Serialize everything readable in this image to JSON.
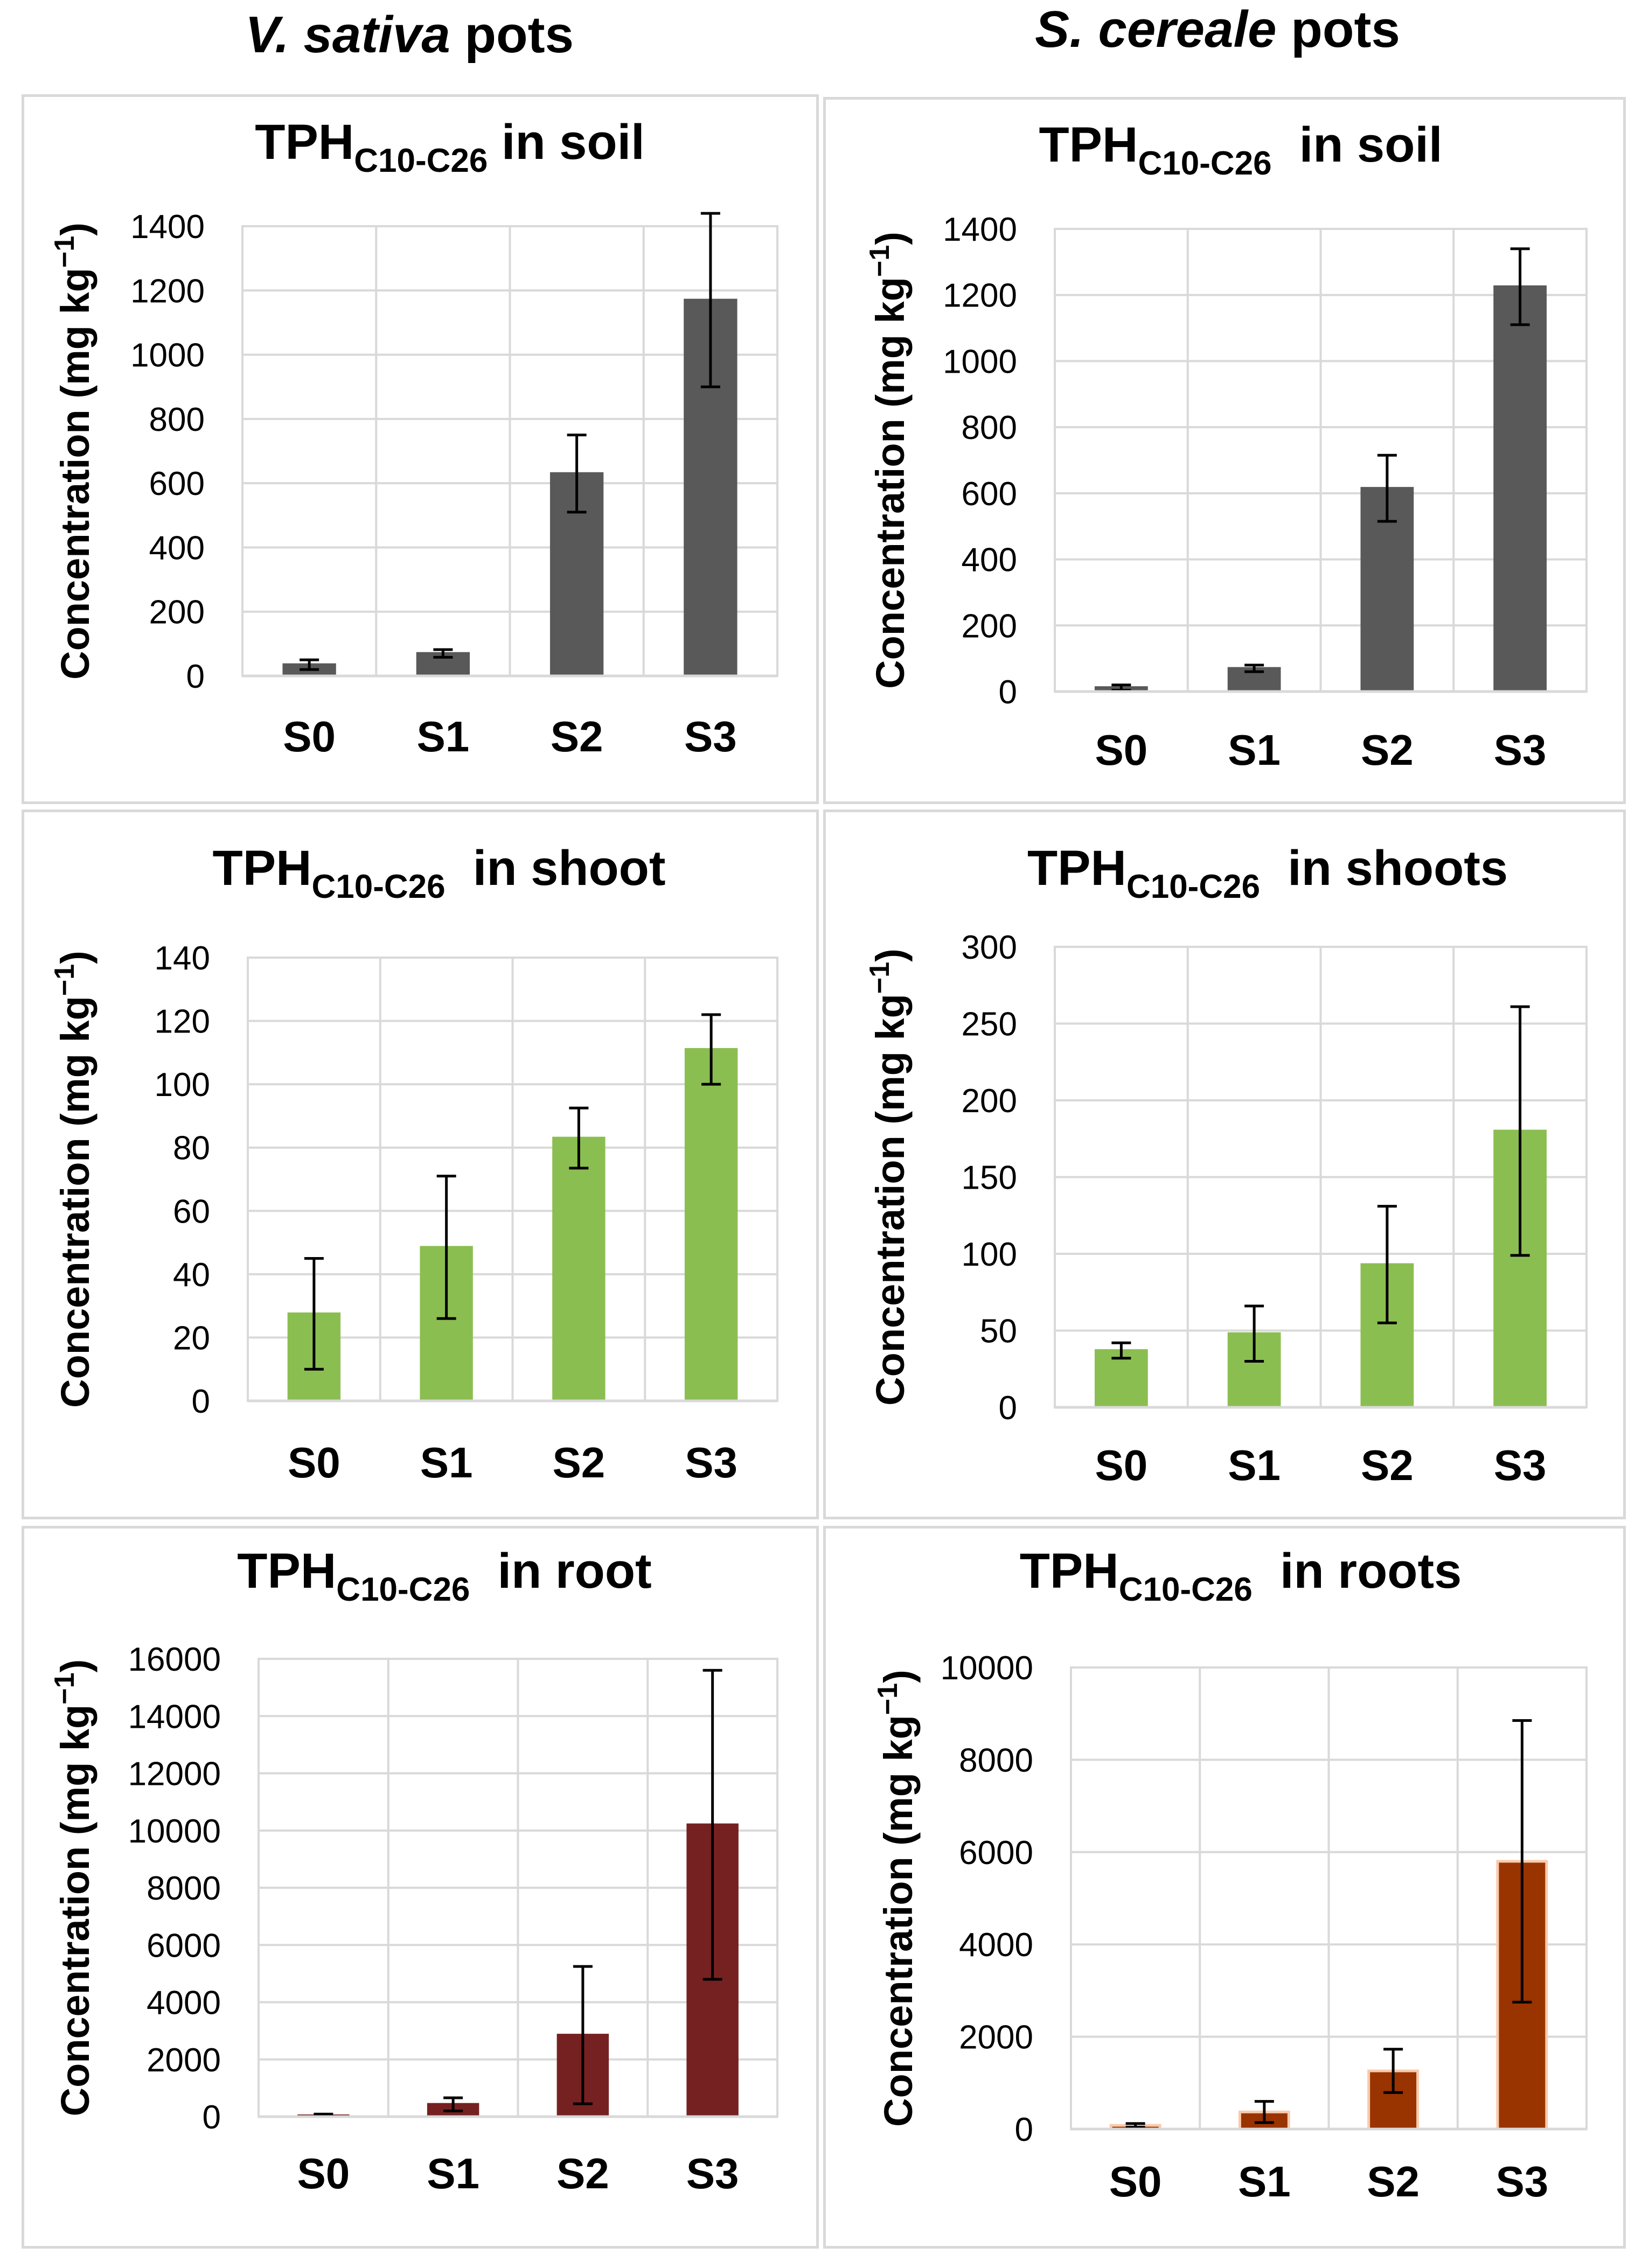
{
  "columns": [
    {
      "italic": "V. sativa",
      "rest": " pots"
    },
    {
      "italic": "S. cereale",
      "rest": " pots"
    }
  ],
  "chart_data": [
    {
      "type": "bar",
      "panel": "V. sativa soil",
      "title_main": "TPH",
      "title_sub": "C10-C26",
      "title_suffix": " in soil",
      "ylabel": "Concentration (mg kg",
      "ylabel_sup": "−1",
      "ylabel_close": ")",
      "categories": [
        "S0",
        "S1",
        "S2",
        "S3"
      ],
      "values": [
        35,
        70,
        630,
        1170
      ],
      "errors": [
        15,
        12,
        120,
        270
      ],
      "ylim": [
        0,
        1400
      ],
      "yticks": [
        0,
        200,
        400,
        600,
        800,
        1000,
        1200,
        1400
      ],
      "color": "#595959",
      "edge": "#595959",
      "grid": true
    },
    {
      "type": "bar",
      "panel": "S. cereale soil",
      "title_main": "TPH",
      "title_sub": "C10-C26",
      "title_suffix": "  in soil",
      "ylabel": "Concentration (mg kg",
      "ylabel_sup": "−1",
      "ylabel_close": ")",
      "categories": [
        "S0",
        "S1",
        "S2",
        "S3"
      ],
      "values": [
        12,
        70,
        615,
        1225
      ],
      "errors": [
        8,
        10,
        100,
        115
      ],
      "ylim": [
        0,
        1400
      ],
      "yticks": [
        0,
        200,
        400,
        600,
        800,
        1000,
        1200,
        1400
      ],
      "color": "#595959",
      "edge": "#595959",
      "grid": true
    },
    {
      "type": "bar",
      "panel": "V. sativa shoot",
      "title_main": "TPH",
      "title_sub": "C10-C26",
      "title_suffix": "  in shoot",
      "ylabel": "Concentration (mg kg",
      "ylabel_sup": "−1",
      "ylabel_close": ")",
      "categories": [
        "S0",
        "S1",
        "S2",
        "S3"
      ],
      "values": [
        27.5,
        48.5,
        83,
        111
      ],
      "errors": [
        17.5,
        22.5,
        9.5,
        11
      ],
      "ylim": [
        0,
        140
      ],
      "yticks": [
        0,
        20,
        40,
        60,
        80,
        100,
        120,
        140
      ],
      "color": "#8bbe50",
      "edge": "#8bbe50",
      "grid": true
    },
    {
      "type": "bar",
      "panel": "S. cereale shoots",
      "title_main": "TPH",
      "title_sub": "C10-C26",
      "title_suffix": "  in shoots",
      "ylabel": "Concentration (mg kg",
      "ylabel_sup": "−1",
      "ylabel_close": ")",
      "categories": [
        "S0",
        "S1",
        "S2",
        "S3"
      ],
      "values": [
        37,
        48,
        93,
        180
      ],
      "errors": [
        5,
        18,
        38,
        81
      ],
      "ylim": [
        0,
        300
      ],
      "yticks": [
        0,
        50,
        100,
        150,
        200,
        250,
        300
      ],
      "color": "#8bbe50",
      "edge": "#8bbe50",
      "grid": true
    },
    {
      "type": "bar",
      "panel": "V. sativa root",
      "title_main": "TPH",
      "title_sub": "C10-C26",
      "title_suffix": "  in root",
      "ylabel": "Concentration (mg kg",
      "ylabel_sup": "−1",
      "ylabel_close": ")",
      "categories": [
        "S0",
        "S1",
        "S2",
        "S3"
      ],
      "values": [
        30,
        430,
        2850,
        10200
      ],
      "errors": [
        60,
        230,
        2400,
        5400
      ],
      "ylim": [
        0,
        16000
      ],
      "yticks": [
        0,
        2000,
        4000,
        6000,
        8000,
        10000,
        12000,
        14000,
        16000
      ],
      "color": "#762121",
      "edge": "#762121",
      "grid": true
    },
    {
      "type": "bar",
      "panel": "S. cereale roots",
      "title_main": "TPH",
      "title_sub": "C10-C26",
      "title_suffix": "  in roots",
      "ylabel": "Concentration (mg kg",
      "ylabel_sup": "−1",
      "ylabel_close": ")",
      "categories": [
        "S0",
        "S1",
        "S2",
        "S3"
      ],
      "values": [
        80,
        370,
        1260,
        5800
      ],
      "errors": [
        40,
        230,
        470,
        3050
      ],
      "ylim": [
        0,
        10000
      ],
      "yticks": [
        0,
        2000,
        4000,
        6000,
        8000,
        10000
      ],
      "color": "#993300",
      "edge": "#f8cbad",
      "grid": true
    }
  ]
}
